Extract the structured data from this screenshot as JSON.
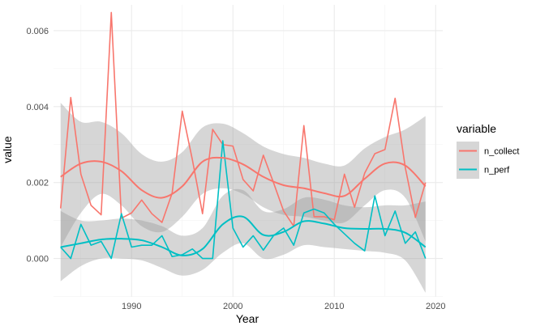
{
  "chart_data": {
    "type": "line",
    "xlabel": "Year",
    "ylabel": "value",
    "xlim": [
      1982.3,
      2020.7
    ],
    "ylim": [
      -0.00101,
      0.00668
    ],
    "x_ticks": [
      1990,
      2000,
      2010,
      2020
    ],
    "x_tick_labels": [
      "1990",
      "2000",
      "2010",
      "2020"
    ],
    "y_ticks": [
      0.0,
      0.002,
      0.004,
      0.006
    ],
    "y_tick_labels": [
      "0.000",
      "0.002",
      "0.004",
      "0.006"
    ],
    "grid": true,
    "legend": {
      "title": "variable",
      "position": "right"
    },
    "x": [
      1983,
      1984,
      1985,
      1986,
      1987,
      1988,
      1989,
      1990,
      1991,
      1992,
      1993,
      1994,
      1995,
      1996,
      1997,
      1998,
      1999,
      2000,
      2001,
      2002,
      2003,
      2004,
      2005,
      2006,
      2007,
      2008,
      2009,
      2010,
      2011,
      2012,
      2013,
      2014,
      2015,
      2016,
      2017,
      2018,
      2019
    ],
    "series": [
      {
        "name": "n_collect",
        "color": "#F8766D",
        "values": [
          0.00132,
          0.00424,
          0.00222,
          0.0014,
          0.00115,
          0.00648,
          0.00106,
          0.0012,
          0.00154,
          0.00118,
          0.00095,
          0.00172,
          0.00388,
          0.0026,
          0.00118,
          0.0034,
          0.003,
          0.00296,
          0.00208,
          0.00178,
          0.00272,
          0.002,
          0.00125,
          0.00085,
          0.0035,
          0.0011,
          0.0011,
          0.00102,
          0.00222,
          0.00135,
          0.00225,
          0.00276,
          0.00287,
          0.00422,
          0.0024,
          0.00108,
          0.002
        ],
        "smooth": {
          "x": [
            1983,
            1985,
            1987,
            1989,
            1991,
            1993,
            1995,
            1997,
            1999,
            2001,
            2003,
            2005,
            2007,
            2009,
            2011,
            2013,
            2015,
            2017,
            2019
          ],
          "y": [
            0.00215,
            0.0025,
            0.00255,
            0.0023,
            0.0018,
            0.0016,
            0.0019,
            0.00255,
            0.00265,
            0.00248,
            0.00215,
            0.00193,
            0.00185,
            0.00172,
            0.00165,
            0.0021,
            0.0025,
            0.00245,
            0.0019
          ],
          "lo": [
            0.0003,
            0.0012,
            0.0017,
            0.0014,
            0.00085,
            0.0007,
            0.0011,
            0.0017,
            0.00185,
            0.0017,
            0.00135,
            0.00115,
            0.0011,
            0.001,
            0.00095,
            0.0014,
            0.0018,
            0.0016,
            0.00045
          ],
          "hi": [
            0.0041,
            0.0036,
            0.0036,
            0.0033,
            0.00275,
            0.00255,
            0.0028,
            0.00345,
            0.00355,
            0.0033,
            0.00295,
            0.00275,
            0.00265,
            0.0025,
            0.00245,
            0.0029,
            0.0032,
            0.0034,
            0.00375
          ]
        }
      },
      {
        "name": "n_perf",
        "color": "#00BFC4",
        "values": [
          0.0003,
          0.0,
          0.0009,
          0.00035,
          0.00045,
          0.0,
          0.00118,
          0.0003,
          0.00035,
          0.00035,
          0.0006,
          5e-05,
          0.0001,
          0.00025,
          0.0,
          0.0,
          0.0031,
          0.0008,
          0.0003,
          0.0006,
          0.00022,
          0.0006,
          0.0008,
          0.00035,
          0.0012,
          0.0013,
          0.0012,
          0.0009,
          0.00065,
          0.0004,
          0.0002,
          0.00165,
          0.0006,
          0.00125,
          0.0004,
          0.0007,
          0.0
        ],
        "smooth": {
          "x": [
            1983,
            1985,
            1987,
            1989,
            1991,
            1993,
            1995,
            1997,
            1999,
            2001,
            2003,
            2005,
            2007,
            2009,
            2011,
            2013,
            2015,
            2017,
            2019
          ],
          "y": [
            0.0003,
            0.0004,
            0.0005,
            0.00052,
            0.00048,
            0.0003,
            8e-05,
            0.00025,
            0.0009,
            0.0011,
            0.00062,
            0.0007,
            0.00098,
            0.00092,
            0.0008,
            0.00078,
            0.00078,
            0.00068,
            0.0003
          ],
          "lo": [
            -0.0006,
            -0.0002,
            0.0,
            0.0,
            -5e-05,
            -0.00025,
            -0.00045,
            -0.0003,
            0.00015,
            0.0004,
            0.0,
            0.0001,
            0.00035,
            0.0003,
            0.00025,
            0.0002,
            0.00015,
            -5e-05,
            -0.0009
          ],
          "hi": [
            0.00125,
            0.001,
            0.001,
            0.00105,
            0.001,
            0.00085,
            0.0006,
            0.0008,
            0.00165,
            0.0018,
            0.00125,
            0.0013,
            0.0016,
            0.00155,
            0.0014,
            0.00135,
            0.0014,
            0.0014,
            0.0015
          ]
        }
      }
    ]
  }
}
